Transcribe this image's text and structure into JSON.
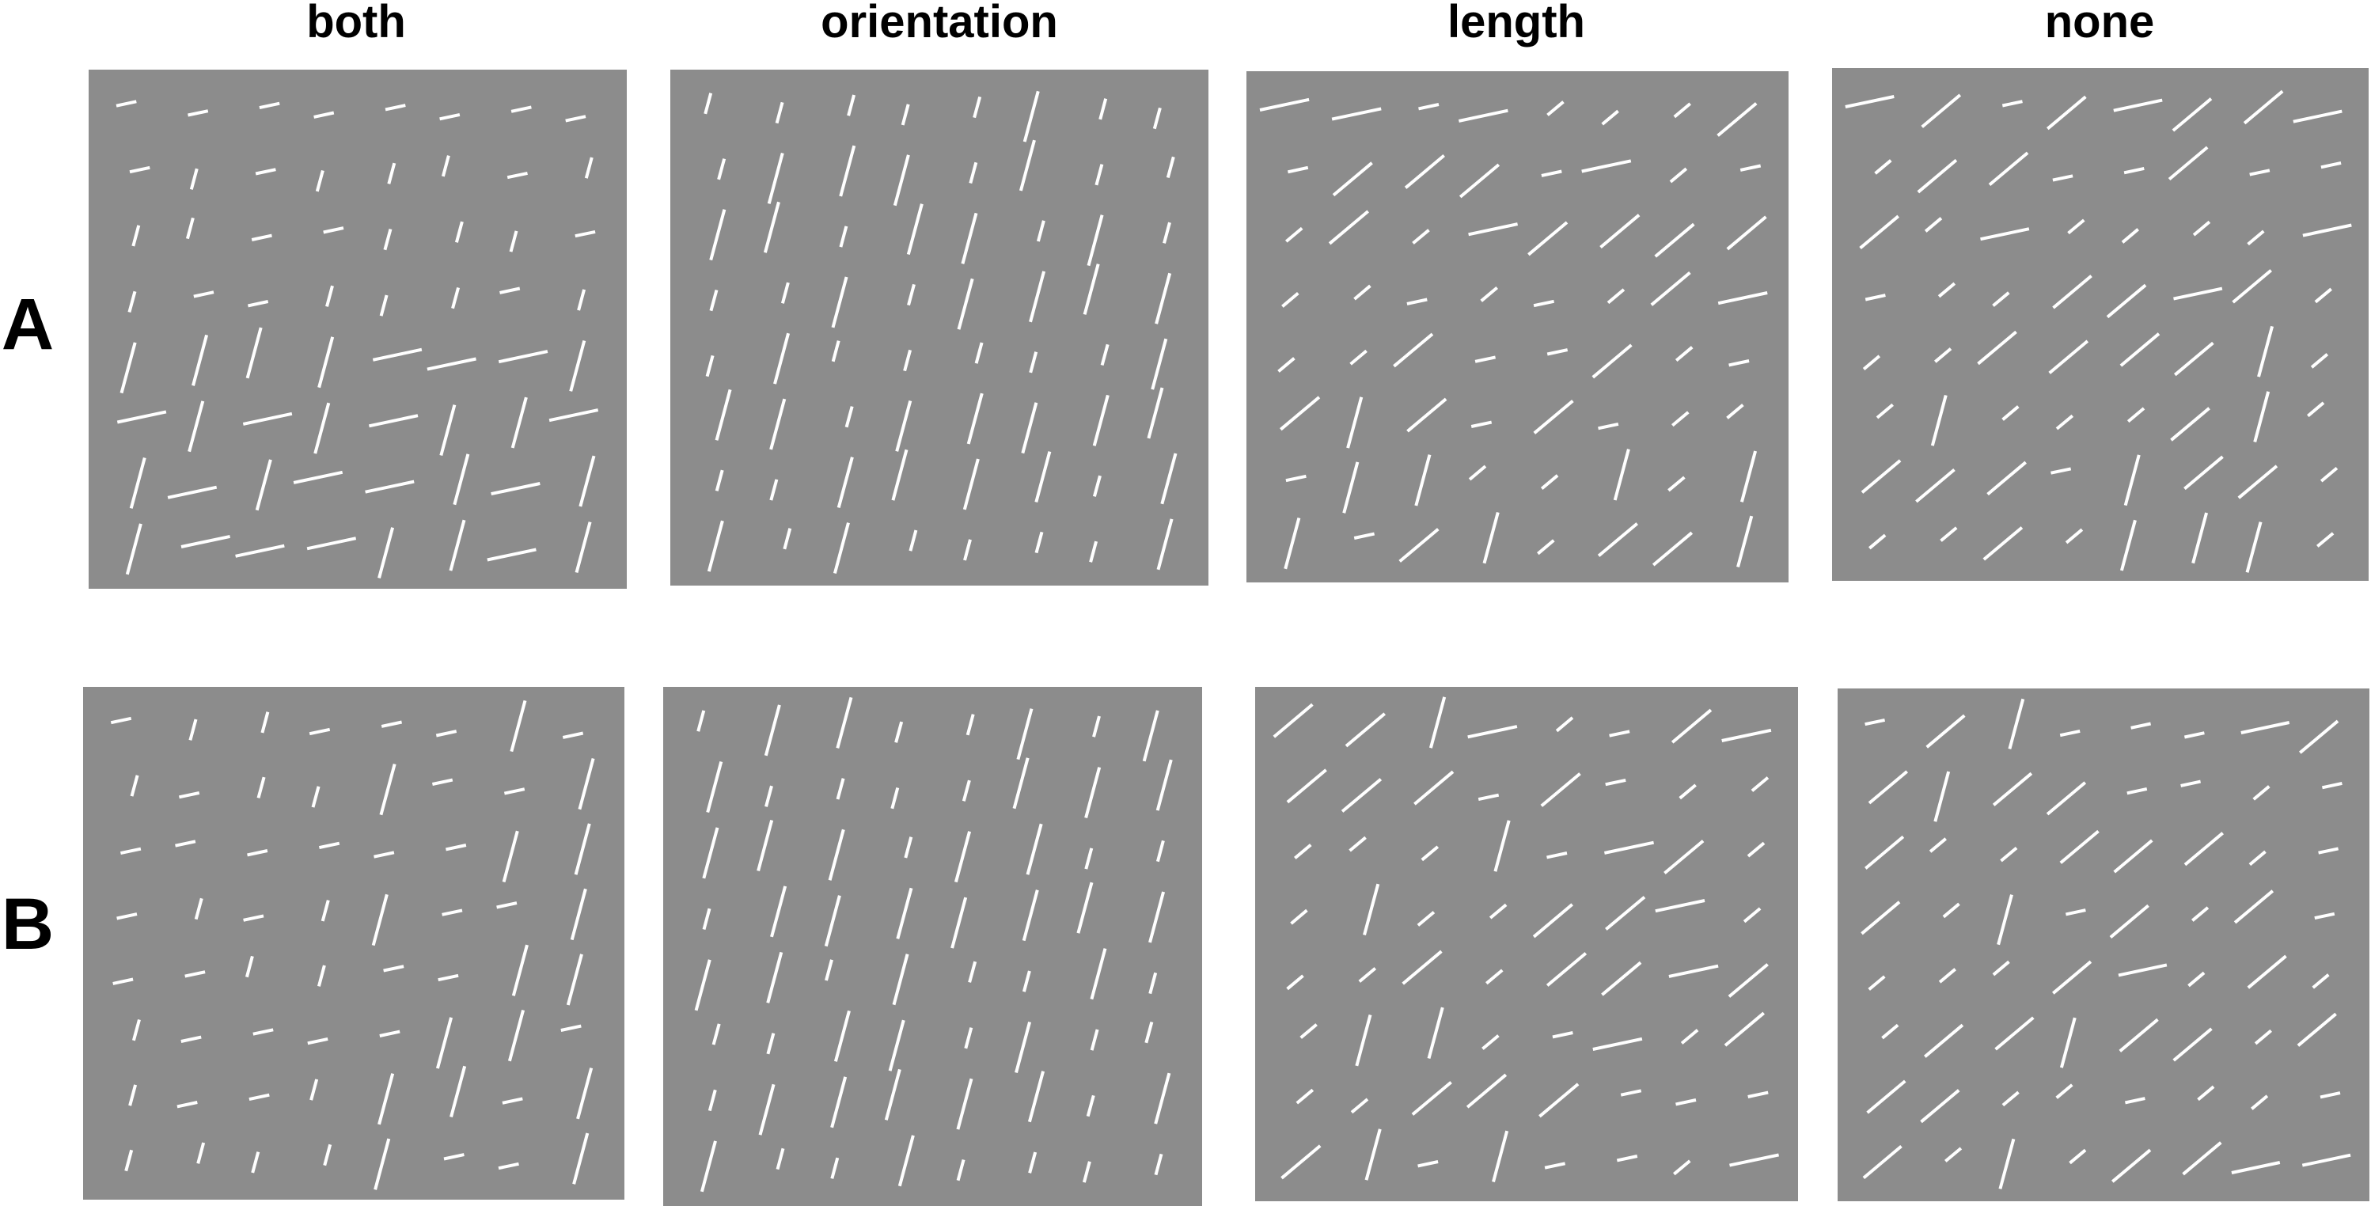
{
  "column_titles": [
    "both",
    "orientation",
    "length",
    "none"
  ],
  "row_titles": [
    "A",
    "B"
  ],
  "colors": {
    "background": "#ffffff",
    "panel": "#8c8c8c",
    "segment": "#ffffff",
    "text": "#000000"
  },
  "panels": [
    {
      "row": "A",
      "condition": "both",
      "grid": [
        "ss.ss.ss.ss.ssl.ssl.ssl.ssl",
        "ss.sl.ss.sl.sl.sl.ss.sl",
        "sl.sl.ss.ss.sl.sl.sl.ss",
        "sl.ss.ss.sl.sl.sl.ss.sl",
        "ll.ll.ll.ll.ls.ls.ls.ll",
        "ls.ll.ls.ll.ls.ll.ll.ls",
        "ll.ls.ll.ls.ls.ll.ls.ll",
        "ll.ls.ls.ls.ll.ll.ls.ll"
      ]
    },
    {
      "row": "A",
      "condition": "orientation",
      "grid": [
        "sl.sl.sl.sl.sl.ll.sl.sl",
        "sl.ll.ll.ll.sl.ll.sl.sl",
        "ll.ll.sl.ll.ll.sl.ll.sl",
        "sl.sl.ll.sl.ll.ll.ll.ll",
        "sl.ll.sl.sl.sl.sl.sl.ll",
        "ll.ll.sl.ll.ll.ll.ll.ll",
        "sl.sl.ll.ll.ll.ll.sl.ll",
        "ll.sl.ll.sl.sl.sl.sl.ll"
      ]
    },
    {
      "row": "A",
      "condition": "length",
      "grid": [
        "ls.ls.ss.ls.sd.sd.sd.ld",
        "ss.ld.ld.ld.ss.ls.sd.ss",
        "sd.ld.sd.ls.ld.ld.ld.ld",
        "sd.sd.ss.sd.ss.sd.ld.ls",
        "sd.sd.ld.ss.ss.ld.sd.ss",
        "ld.ll.ld.ss.ld.ss.sd.sd",
        "ss.ll.ll.sd.sd.ll.sd.ll",
        "ll.ss.ld.ll.sd.ld.ld.ll"
      ]
    },
    {
      "row": "A",
      "condition": "none",
      "grid": [
        "ls.ld.ss.ld.ls.ld.ld.ls",
        "sd.ld.ld.ss.ss.ld.ss.ss",
        "ld.sd.ls.sd.sd.sd.sd.ls",
        "ss.sd.sd.ld.ld.ls.ld.sd",
        "sd.sd.ld.ld.ld.ld.ll.sd",
        "sd.ll.sd.sd.sd.ld.ll.sd",
        "ld.ld.ld.ss.ll.ld.ld.sd",
        "sd.sd.ld.sd.ll.ll.ll.sd"
      ]
    },
    {
      "row": "B",
      "condition": "both",
      "grid": [
        "ss.sl.sl.ss.ss.ss.ll.ss",
        "sl.ss.sl.sl.ll.ss.ss.ll",
        "ss.ss.ss.ss.ss.ss.ll.ll",
        "ss.sl.ss.sl.ll.ss.ss.ll",
        "ss.ss.sl.sl.ss.ss.ll.ll",
        "sl.ss.ss.ss.ss.ll.ll.ss",
        "sl.ss.ss.sl.ll.ll.ss.ll",
        "sl.sl.sl.sl.ll.ss.ss.ll"
      ]
    },
    {
      "row": "B",
      "condition": "orientation",
      "grid": [
        "sl.ll.ll.sl.sl.ll.sl.ll",
        "ll.sl.sl.sl.sl.ll.ll.ll",
        "ll.ll.ll.sl.ll.ll.sl.sl",
        "sl.ll.ll.ll.ll.ll.ll.ll",
        "ll.ll.sl.ll.sl.sl.ll.sl",
        "sl.sl.ll.ll.sl.ll.sl.sl",
        "sl.ll.ll.ll.ll.ll.sl.ll",
        "ll.sl.sl.ll.sl.sl.sl.sl"
      ]
    },
    {
      "row": "B",
      "condition": "length",
      "grid": [
        "ld.ld.ll.ls.sd.ss.ld.ls",
        "ld.ld.ld.ss.ld.ss.sd.sd",
        "sd.sd.sd.ll.ss.ls.ld.sd",
        "sd.ll.sd.sd.ld.ld.ls.sd",
        "sd.sd.ld.sd.ld.ld.ls.ld",
        "sd.ll.ll.sd.ss.ls.sd.ld",
        "sd.sd.ld.ld.ld.ss.ss.ss",
        "ld.ll.ss.ll.ss.ss.sd.ls"
      ]
    },
    {
      "row": "B",
      "condition": "none",
      "grid": [
        "ss.ld.ll.ss.ss.ss.ls.ld",
        "ld.ll.ld.ld.ss.ss.sd.ss",
        "ld.sd.sd.ld.ld.ld.sd.ss",
        "ld.sd.ll.ss.ld.sd.ld.ss",
        "sd.sd.sd.ld.ls.sd.ld.sd",
        "sd.ld.ld.ll.ld.ld.sd.ld",
        "ld.ld.sd.sd.ss.sd.sd.ss",
        "ld.sd.ll.sd.ld.ld.ls.ls"
      ]
    }
  ]
}
